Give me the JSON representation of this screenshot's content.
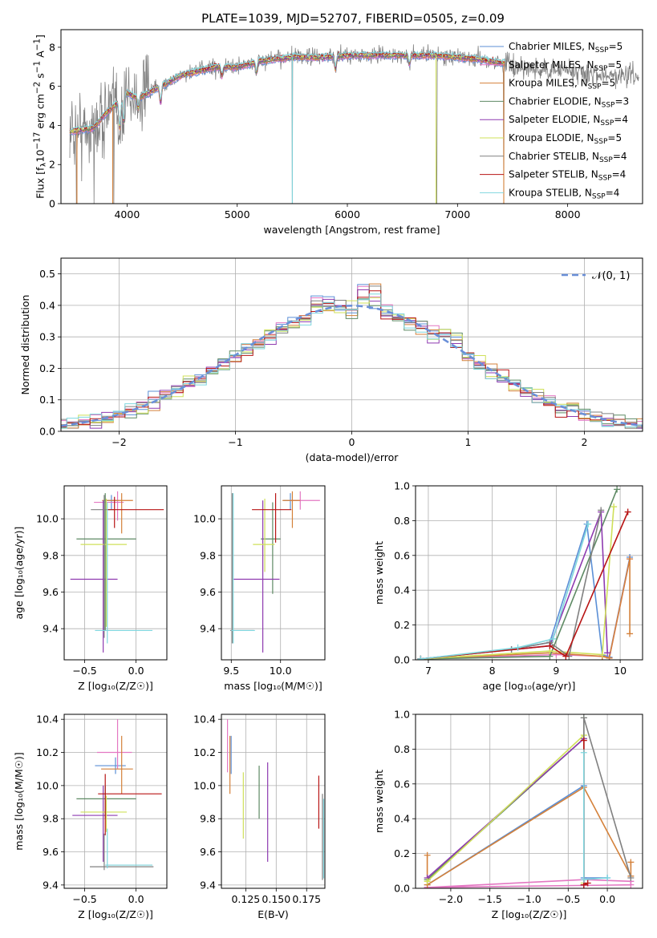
{
  "figure_title": "PLATE=1039, MJD=52707, FIBERID=0505, z=0.09",
  "colors": {
    "Chabrier MILES": "#5b8fd6",
    "Salpeter MILES": "#e377c2",
    "Kroupa MILES": "#d4813a",
    "Chabrier ELODIE": "#5e8a64",
    "Salpeter ELODIE": "#8e3ab0",
    "Kroupa ELODIE": "#cfe05a",
    "Chabrier STELIB": "#808080",
    "Salpeter STELIB": "#b81414",
    "Kroupa STELIB": "#7fd6de"
  },
  "chart_data": [
    {
      "id": "spectrum",
      "type": "line",
      "xlabel": "wavelength [Angstrom, rest frame]",
      "ylabel_html": "Flux [f<sub>λ</sub>10<sup>−17</sup> erg cm<sup>−2</sup> s<sup>−1</sup> A<sup>−1</sup>]",
      "xlim": [
        3400,
        8680
      ],
      "ylim": [
        0,
        8.9
      ],
      "xticks": [
        4000,
        5000,
        6000,
        7000,
        8000
      ],
      "yticks": [
        0,
        2,
        4,
        6,
        8
      ],
      "legend": [
        {
          "name": "Chabrier MILES",
          "nssp": "5"
        },
        {
          "name": "Salpeter MILES",
          "nssp": "5"
        },
        {
          "name": "Kroupa MILES",
          "nssp": "5"
        },
        {
          "name": "Chabrier ELODIE",
          "nssp": "3"
        },
        {
          "name": "Salpeter ELODIE",
          "nssp": "4"
        },
        {
          "name": "Kroupa ELODIE",
          "nssp": "5"
        },
        {
          "name": "Chabrier STELIB",
          "nssp": "4"
        },
        {
          "name": "Salpeter STELIB",
          "nssp": "4"
        },
        {
          "name": "Kroupa STELIB",
          "nssp": "4"
        }
      ],
      "legend_placement": "right",
      "continuum_model": {
        "x": [
          3500,
          3700,
          3800,
          3900,
          4000,
          4100,
          4300,
          4500,
          4800,
          5000,
          5200,
          5500,
          5800,
          6000,
          6200,
          6500,
          6800,
          7000,
          7200,
          7400
        ],
        "y": [
          3.7,
          3.9,
          4.6,
          5.1,
          5.7,
          5.4,
          6.0,
          6.6,
          7.0,
          7.0,
          7.3,
          7.5,
          7.5,
          7.6,
          7.6,
          7.6,
          7.6,
          7.5,
          7.4,
          7.2
        ]
      },
      "data_range": [
        3480,
        8650
      ],
      "models_range": [
        3480,
        7430
      ],
      "absorption_features": [
        {
          "x": 3934,
          "depth": 1.6
        },
        {
          "x": 3969,
          "depth": 1.5
        },
        {
          "x": 4102,
          "depth": 0.6
        },
        {
          "x": 4304,
          "depth": 0.9
        },
        {
          "x": 4861,
          "depth": 0.5
        },
        {
          "x": 5175,
          "depth": 0.6
        },
        {
          "x": 5892,
          "depth": 0.7
        },
        {
          "x": 6563,
          "depth": 0.5
        }
      ],
      "spikes": [
        {
          "x": 3540,
          "to": 0
        },
        {
          "x": 3700,
          "to": 0
        },
        {
          "x": 3880,
          "to": 0
        },
        {
          "x": 5500,
          "to": 0
        },
        {
          "x": 6810,
          "to": 0
        },
        {
          "x": 7420,
          "to": 0
        }
      ]
    },
    {
      "id": "residuals",
      "type": "histogram",
      "xlabel": "(data-model)/error",
      "ylabel": "Normed distribution",
      "xlim": [
        -2.5,
        2.5
      ],
      "ylim": [
        0,
        0.55
      ],
      "xticks": [
        -2,
        -1,
        0,
        1,
        2
      ],
      "yticks": [
        0,
        0.1,
        0.2,
        0.3,
        0.4,
        0.5
      ],
      "grid": true,
      "bin_width": 0.1,
      "reference_curve": {
        "name": "𝒩(0, 1)",
        "mean": 0,
        "sigma": 1,
        "color": "#6a8fd8",
        "style": "dashed"
      },
      "legend_placement": "top-right"
    },
    {
      "id": "age_vs_Z",
      "type": "errorbar",
      "xlabel": "Z [log₁₀(Z/Z☉)]",
      "ylabel": "age  [log₁₀(age/yr)]",
      "xlim": [
        -0.7,
        0.3
      ],
      "ylim": [
        9.23,
        10.18
      ],
      "xticks": [
        -0.5,
        0.0
      ],
      "yticks": [
        9.4,
        9.6,
        9.8,
        10.0
      ],
      "grid": true,
      "points": [
        {
          "model": "Chabrier MILES",
          "x": -0.24,
          "xerr": [
            0.07,
            0.07
          ],
          "y": 10.1,
          "yerr": [
            0.05,
            0.03
          ]
        },
        {
          "model": "Salpeter MILES",
          "x": -0.18,
          "xerr": [
            0.23,
            0.06
          ],
          "y": 10.09,
          "yerr": [
            0.1,
            0.06
          ]
        },
        {
          "model": "Kroupa MILES",
          "x": -0.14,
          "xerr": [
            0.19,
            0.11
          ],
          "y": 10.1,
          "yerr": [
            0.18,
            0.04
          ]
        },
        {
          "model": "Chabrier ELODIE",
          "x": -0.3,
          "xerr": [
            0.28,
            0.3
          ],
          "y": 9.89,
          "yerr": [
            0.5,
            0.25
          ]
        },
        {
          "model": "Salpeter ELODIE",
          "x": -0.32,
          "xerr": [
            0.32,
            0.14
          ],
          "y": 9.67,
          "yerr": [
            0.4,
            0.43
          ]
        },
        {
          "model": "Kroupa ELODIE",
          "x": -0.29,
          "xerr": [
            0.25,
            0.2
          ],
          "y": 9.86,
          "yerr": [
            0.45,
            0.25
          ]
        },
        {
          "model": "Chabrier STELIB",
          "x": -0.31,
          "xerr": [
            0.13,
            0.1
          ],
          "y": 10.05,
          "yerr": [
            0.7,
            0.08
          ]
        },
        {
          "model": "Salpeter STELIB",
          "x": -0.21,
          "xerr": [
            0.07,
            0.48
          ],
          "y": 10.05,
          "yerr": [
            0.1,
            0.07
          ]
        },
        {
          "model": "Kroupa STELIB",
          "x": -0.28,
          "xerr": [
            0.12,
            0.44
          ],
          "y": 9.39,
          "yerr": [
            0.07,
            0.7
          ]
        }
      ]
    },
    {
      "id": "age_vs_mass",
      "type": "errorbar",
      "xlabel": "mass [log₁₀(M/M☉)]",
      "xlim": [
        9.4,
        10.45
      ],
      "ylim": [
        9.23,
        10.18
      ],
      "xticks": [
        9.5,
        10.0
      ],
      "yticks": [
        9.4,
        9.6,
        9.8,
        10.0
      ],
      "grid": true,
      "points": [
        {
          "model": "Chabrier MILES",
          "x": 10.1,
          "xerr": [
            0.07,
            0.08
          ],
          "y": 10.1,
          "yerr": [
            0.05,
            0.04
          ]
        },
        {
          "model": "Salpeter MILES",
          "x": 10.2,
          "xerr": [
            0.1,
            0.2
          ],
          "y": 10.1,
          "yerr": [
            0.05,
            0.05
          ]
        },
        {
          "model": "Kroupa MILES",
          "x": 10.12,
          "xerr": [
            0.1,
            0.08
          ],
          "y": 10.1,
          "yerr": [
            0.15,
            0.05
          ]
        },
        {
          "model": "Chabrier ELODIE",
          "x": 9.92,
          "xerr": [
            0.12,
            0.08
          ],
          "y": 9.89,
          "yerr": [
            0.3,
            0.2
          ]
        },
        {
          "model": "Salpeter ELODIE",
          "x": 9.82,
          "xerr": [
            0.3,
            0.17
          ],
          "y": 9.67,
          "yerr": [
            0.4,
            0.43
          ]
        },
        {
          "model": "Kroupa ELODIE",
          "x": 9.84,
          "xerr": [
            0.12,
            0.1
          ],
          "y": 9.86,
          "yerr": [
            0.15,
            0.25
          ]
        },
        {
          "model": "Chabrier STELIB",
          "x": 9.51,
          "xerr": [
            0.02,
            0.22
          ],
          "y": 9.39,
          "yerr": [
            0.07,
            0.75
          ]
        },
        {
          "model": "Salpeter STELIB",
          "x": 9.95,
          "xerr": [
            0.24,
            0.16
          ],
          "y": 10.05,
          "yerr": [
            0.18,
            0.09
          ]
        },
        {
          "model": "Kroupa STELIB",
          "x": 9.52,
          "xerr": [
            0.02,
            0.22
          ],
          "y": 9.39,
          "yerr": [
            0.07,
            0.75
          ]
        }
      ]
    },
    {
      "id": "weight_vs_age",
      "type": "line",
      "xlabel": "age  [log₁₀(age/yr)]",
      "ylabel": "mass weight",
      "xlim": [
        6.8,
        10.35
      ],
      "ylim": [
        0,
        1.0
      ],
      "xticks": [
        7,
        8,
        9,
        10
      ],
      "yticks": [
        0,
        0.2,
        0.4,
        0.6,
        0.8,
        1.0
      ],
      "grid": true,
      "series": [
        {
          "model": "Chabrier MILES",
          "x": [
            6.88,
            8.3,
            8.9,
            9.48,
            9.72,
            9.83,
            10.15
          ],
          "y": [
            0.005,
            0.06,
            0.1,
            0.78,
            0.03,
            0.015,
            0.59
          ]
        },
        {
          "model": "Salpeter MILES",
          "x": [
            6.88,
            9.0,
            9.72,
            9.83,
            10.15
          ],
          "y": [
            0.005,
            0.03,
            0.02,
            0.01,
            0.58
          ]
        },
        {
          "model": "Kroupa MILES",
          "x": [
            6.88,
            8.9,
            9.72,
            9.83,
            10.15,
            10.15
          ],
          "y": [
            0.005,
            0.04,
            0.02,
            0.01,
            0.58,
            0.15
          ]
        },
        {
          "model": "Chabrier ELODIE",
          "x": [
            6.88,
            8.9,
            9.95
          ],
          "y": [
            0.005,
            0.02,
            0.98
          ]
        },
        {
          "model": "Salpeter ELODIE",
          "x": [
            6.88,
            8.9,
            9.7,
            9.8
          ],
          "y": [
            0.005,
            0.08,
            0.85,
            0.04
          ]
        },
        {
          "model": "Kroupa ELODIE",
          "x": [
            6.88,
            8.9,
            9.72,
            9.9
          ],
          "y": [
            0.005,
            0.05,
            0.03,
            0.88
          ]
        },
        {
          "model": "Chabrier STELIB",
          "x": [
            6.88,
            8.3,
            8.9,
            9.2,
            9.7
          ],
          "y": [
            0.005,
            0.06,
            0.1,
            0.02,
            0.86
          ]
        },
        {
          "model": "Salpeter STELIB",
          "x": [
            6.88,
            8.9,
            9.15,
            10.12
          ],
          "y": [
            0.005,
            0.08,
            0.02,
            0.85
          ]
        },
        {
          "model": "Kroupa STELIB",
          "x": [
            6.88,
            8.4,
            8.95,
            9.5
          ],
          "y": [
            0.005,
            0.07,
            0.12,
            0.78
          ]
        }
      ]
    },
    {
      "id": "mass_vs_Z",
      "type": "errorbar",
      "xlabel": "Z [log₁₀(Z/Z☉)]",
      "ylabel": "mass [log₁₀(M/M☉)]",
      "xlim": [
        -0.7,
        0.3
      ],
      "ylim": [
        9.38,
        10.43
      ],
      "xticks": [
        -0.5,
        0.0
      ],
      "yticks": [
        9.4,
        9.6,
        9.8,
        10.0,
        10.2,
        10.4
      ],
      "grid": true,
      "points": [
        {
          "model": "Chabrier MILES",
          "x": -0.2,
          "xerr": [
            0.2,
            0.1
          ],
          "y": 10.12,
          "yerr": [
            0.05,
            0.05
          ]
        },
        {
          "model": "Salpeter MILES",
          "x": -0.18,
          "xerr": [
            0.2,
            0.14
          ],
          "y": 10.2,
          "yerr": [
            0.1,
            0.2
          ]
        },
        {
          "model": "Kroupa MILES",
          "x": -0.14,
          "xerr": [
            0.2,
            0.11
          ],
          "y": 10.1,
          "yerr": [
            0.15,
            0.2
          ]
        },
        {
          "model": "Chabrier ELODIE",
          "x": -0.3,
          "xerr": [
            0.28,
            0.3
          ],
          "y": 9.92,
          "yerr": [
            0.12,
            0.08
          ]
        },
        {
          "model": "Salpeter ELODIE",
          "x": -0.32,
          "xerr": [
            0.3,
            0.14
          ],
          "y": 9.82,
          "yerr": [
            0.28,
            0.18
          ]
        },
        {
          "model": "Kroupa ELODIE",
          "x": -0.29,
          "xerr": [
            0.25,
            0.2
          ],
          "y": 9.84,
          "yerr": [
            0.12,
            0.1
          ]
        },
        {
          "model": "Chabrier STELIB",
          "x": -0.31,
          "xerr": [
            0.14,
            0.48
          ],
          "y": 9.51,
          "yerr": [
            0.02,
            0.2
          ]
        },
        {
          "model": "Salpeter STELIB",
          "x": -0.3,
          "xerr": [
            0.07,
            0.55
          ],
          "y": 9.95,
          "yerr": [
            0.25,
            0.12
          ]
        },
        {
          "model": "Kroupa STELIB",
          "x": -0.28,
          "xerr": [
            0.02,
            0.44
          ],
          "y": 9.52,
          "yerr": [
            0.02,
            0.22
          ]
        }
      ]
    },
    {
      "id": "mass_vs_ebv",
      "type": "errorbar",
      "xlabel": "E(B-V)",
      "xlim": [
        0.105,
        0.19
      ],
      "ylim": [
        9.38,
        10.43
      ],
      "xticks": [
        0.125,
        0.15,
        0.175
      ],
      "xticklabels": [
        "0.125",
        "0.150",
        "0.175"
      ],
      "yticks": [
        9.4,
        9.6,
        9.8,
        10.0,
        10.2,
        10.4
      ],
      "grid": true,
      "points": [
        {
          "model": "Chabrier MILES",
          "x": 0.113,
          "xerr": [
            0,
            0
          ],
          "y": 10.12,
          "yerr": [
            0.05,
            0.18
          ]
        },
        {
          "model": "Salpeter MILES",
          "x": 0.11,
          "xerr": [
            0,
            0
          ],
          "y": 10.2,
          "yerr": [
            0.12,
            0.2
          ]
        },
        {
          "model": "Kroupa MILES",
          "x": 0.112,
          "xerr": [
            0,
            0
          ],
          "y": 10.1,
          "yerr": [
            0.15,
            0.2
          ]
        },
        {
          "model": "Chabrier ELODIE",
          "x": 0.136,
          "xerr": [
            0,
            0
          ],
          "y": 9.92,
          "yerr": [
            0.12,
            0.2
          ]
        },
        {
          "model": "Salpeter ELODIE",
          "x": 0.143,
          "xerr": [
            0,
            0
          ],
          "y": 9.82,
          "yerr": [
            0.28,
            0.32
          ]
        },
        {
          "model": "Kroupa ELODIE",
          "x": 0.123,
          "xerr": [
            0,
            0
          ],
          "y": 9.84,
          "yerr": [
            0.16,
            0.24
          ]
        },
        {
          "model": "Chabrier STELIB",
          "x": 0.188,
          "xerr": [
            0,
            0
          ],
          "y": 9.51,
          "yerr": [
            0.08,
            0.44
          ]
        },
        {
          "model": "Salpeter STELIB",
          "x": 0.185,
          "xerr": [
            0,
            0
          ],
          "y": 9.92,
          "yerr": [
            0.18,
            0.14
          ]
        },
        {
          "model": "Kroupa STELIB",
          "x": 0.189,
          "xerr": [
            0,
            0
          ],
          "y": 9.52,
          "yerr": [
            0.08,
            0.4
          ]
        }
      ]
    },
    {
      "id": "weight_vs_Z",
      "type": "line",
      "xlabel": "Z [log₁₀(Z/Z☉)]",
      "ylabel": "mass weight",
      "xlim": [
        -2.45,
        0.45
      ],
      "ylim": [
        0,
        1.0
      ],
      "xticks": [
        -2.0,
        -1.5,
        -1.0,
        -0.5,
        0.0
      ],
      "yticks": [
        0,
        0.2,
        0.4,
        0.6,
        0.8,
        1.0
      ],
      "grid": true,
      "series": [
        {
          "model": "Chabrier MILES",
          "x": [
            -2.3,
            -0.3,
            -0.3,
            0.0
          ],
          "y": [
            0.02,
            0.59,
            0.06,
            0.06
          ]
        },
        {
          "model": "Salpeter MILES",
          "x": [
            -2.3,
            -0.3,
            0.3,
            0.3,
            -2.3
          ],
          "y": [
            0.005,
            0.05,
            0.04,
            0.02,
            0.005
          ]
        },
        {
          "model": "Kroupa MILES",
          "x": [
            -2.3,
            -2.3,
            -0.3,
            0.3,
            0.3
          ],
          "y": [
            0.19,
            0.02,
            0.58,
            0.07,
            0.15
          ]
        },
        {
          "model": "Chabrier ELODIE",
          "x": [
            -2.3,
            -0.3,
            -0.3
          ],
          "y": [
            0.05,
            0.86,
            0.98
          ]
        },
        {
          "model": "Salpeter ELODIE",
          "x": [
            -2.3,
            -0.3,
            -0.3
          ],
          "y": [
            0.06,
            0.86,
            0.02
          ]
        },
        {
          "model": "Kroupa ELODIE",
          "x": [
            -2.3,
            -0.3,
            -0.3
          ],
          "y": [
            0.04,
            0.88,
            0.03
          ]
        },
        {
          "model": "Chabrier STELIB",
          "x": [
            -0.3,
            -0.3,
            0.3
          ],
          "y": [
            0.02,
            0.98,
            0.06
          ]
        },
        {
          "model": "Salpeter STELIB",
          "x": [
            -0.3,
            -0.3,
            -0.25
          ],
          "y": [
            0.85,
            0.02,
            0.03
          ]
        },
        {
          "model": "Kroupa STELIB",
          "x": [
            -0.3,
            -0.3,
            0.0
          ],
          "y": [
            0.78,
            0.05,
            0.06
          ]
        }
      ]
    }
  ]
}
